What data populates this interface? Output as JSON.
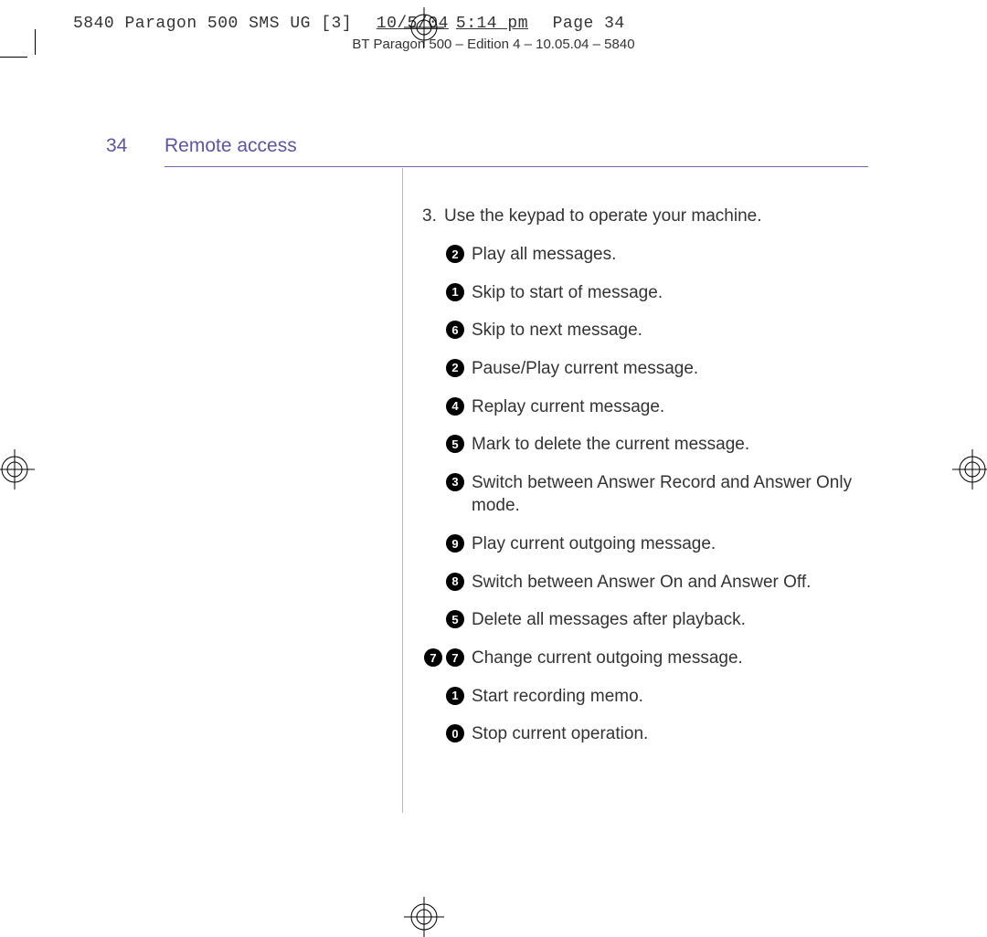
{
  "slug": {
    "prefix": "5840 Paragon 500 SMS UG [3]",
    "date": "10/5/04",
    "time": "5:14 pm",
    "page": "Page 34"
  },
  "edition_line": "BT Paragon 500 – Edition 4 – 10.05.04 – 5840",
  "page_number": "34",
  "section_title": "Remote access",
  "step": {
    "number": "3.",
    "text": "Use the keypad to operate your machine."
  },
  "keypad_items": [
    {
      "keys": [
        "2"
      ],
      "text": "Play all messages."
    },
    {
      "keys": [
        "1"
      ],
      "text": "Skip to start of message."
    },
    {
      "keys": [
        "6"
      ],
      "text": "Skip to next message."
    },
    {
      "keys": [
        "2"
      ],
      "text": "Pause/Play current message."
    },
    {
      "keys": [
        "4"
      ],
      "text": "Replay current message."
    },
    {
      "keys": [
        "5"
      ],
      "text": "Mark to delete the current message."
    },
    {
      "keys": [
        "3"
      ],
      "text": "Switch between Answer Record and Answer Only mode."
    },
    {
      "keys": [
        "9"
      ],
      "text": "Play current outgoing message."
    },
    {
      "keys": [
        "8"
      ],
      "text": "Switch between Answer On and Answer Off."
    },
    {
      "keys": [
        "5"
      ],
      "text": "Delete all messages after playback."
    },
    {
      "keys": [
        "7",
        "7"
      ],
      "text": "Change current outgoing message."
    },
    {
      "keys": [
        "1"
      ],
      "text": "Start recording memo."
    },
    {
      "keys": [
        "0"
      ],
      "text": "Stop current operation."
    }
  ],
  "colors": {
    "heading": "#5b55a4",
    "rule": "#6f68b0",
    "vrule": "#b9b6d6",
    "text": "#333333",
    "key_bg": "#000000",
    "key_fg": "#ffffff",
    "background": "#ffffff"
  }
}
